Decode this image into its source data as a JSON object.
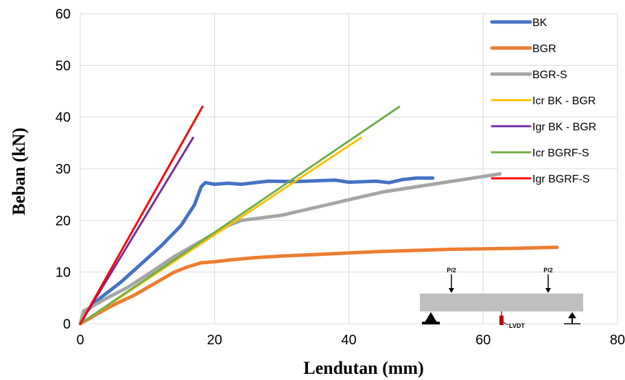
{
  "chart_data": {
    "type": "line",
    "xlabel": "Lendutan (mm)",
    "ylabel": "Beban (kN)",
    "xlim": [
      0,
      80
    ],
    "ylim": [
      0,
      60
    ],
    "xticks": [
      0,
      20,
      40,
      60,
      80
    ],
    "yticks": [
      0,
      10,
      20,
      30,
      40,
      50,
      60
    ],
    "grid": true,
    "legend_position": "top-right",
    "series": [
      {
        "name": "BK",
        "color": "#4472C4",
        "width": 5,
        "points": [
          [
            0,
            0
          ],
          [
            1,
            2.5
          ],
          [
            3,
            5
          ],
          [
            6,
            8
          ],
          [
            9,
            11.5
          ],
          [
            12,
            15
          ],
          [
            15,
            19
          ],
          [
            17,
            23
          ],
          [
            18,
            26.5
          ],
          [
            18.6,
            27.3
          ],
          [
            20,
            27
          ],
          [
            22,
            27.2
          ],
          [
            24,
            27
          ],
          [
            28,
            27.6
          ],
          [
            32,
            27.5
          ],
          [
            36,
            27.7
          ],
          [
            38,
            27.8
          ],
          [
            40,
            27.4
          ],
          [
            44,
            27.6
          ],
          [
            46,
            27.3
          ],
          [
            48,
            27.9
          ],
          [
            50,
            28.2
          ],
          [
            52.5,
            28.2
          ]
        ]
      },
      {
        "name": "BGR",
        "color": "#ED7D31",
        "width": 5,
        "points": [
          [
            0,
            0
          ],
          [
            2,
            1.5
          ],
          [
            4,
            3
          ],
          [
            6,
            4.3
          ],
          [
            8,
            5.5
          ],
          [
            10,
            7
          ],
          [
            12,
            8.5
          ],
          [
            14,
            10
          ],
          [
            16,
            11
          ],
          [
            18,
            11.8
          ],
          [
            20,
            12
          ],
          [
            22,
            12.3
          ],
          [
            26,
            12.8
          ],
          [
            30,
            13.1
          ],
          [
            35,
            13.4
          ],
          [
            40,
            13.7
          ],
          [
            45,
            14
          ],
          [
            50,
            14.2
          ],
          [
            55,
            14.4
          ],
          [
            60,
            14.5
          ],
          [
            65,
            14.6
          ],
          [
            71,
            14.8
          ]
        ]
      },
      {
        "name": "BGR-S",
        "color": "#A5A5A5",
        "width": 5,
        "points": [
          [
            0,
            0
          ],
          [
            0.5,
            2.5
          ],
          [
            2,
            3.5
          ],
          [
            4,
            5
          ],
          [
            7,
            7
          ],
          [
            10,
            9.5
          ],
          [
            14,
            13
          ],
          [
            18,
            16
          ],
          [
            20,
            17.5
          ],
          [
            22,
            19
          ],
          [
            24,
            20
          ],
          [
            27,
            20.5
          ],
          [
            30,
            21
          ],
          [
            35,
            22.5
          ],
          [
            40,
            24
          ],
          [
            45,
            25.5
          ],
          [
            50,
            26.5
          ],
          [
            55,
            27.5
          ],
          [
            60,
            28.5
          ],
          [
            62.5,
            29
          ]
        ]
      },
      {
        "name": "Icr BK - BGR",
        "color": "#FFC000",
        "width": 3,
        "points": [
          [
            0,
            0
          ],
          [
            41.8,
            36
          ]
        ]
      },
      {
        "name": "Igr BK - BGR",
        "color": "#7030A0",
        "width": 3,
        "points": [
          [
            0,
            0
          ],
          [
            16.8,
            36
          ]
        ]
      },
      {
        "name": "Icr BGRF-S",
        "color": "#70AD47",
        "width": 3,
        "points": [
          [
            0,
            0
          ],
          [
            47.5,
            42
          ]
        ]
      },
      {
        "name": "Igr BGRF-S",
        "color": "#FF0000",
        "width": 3,
        "points": [
          [
            0,
            0
          ],
          [
            18.2,
            42
          ]
        ]
      }
    ]
  },
  "inset": {
    "load_left": "P/2",
    "load_right": "P/2",
    "sensor": "LVDT"
  }
}
